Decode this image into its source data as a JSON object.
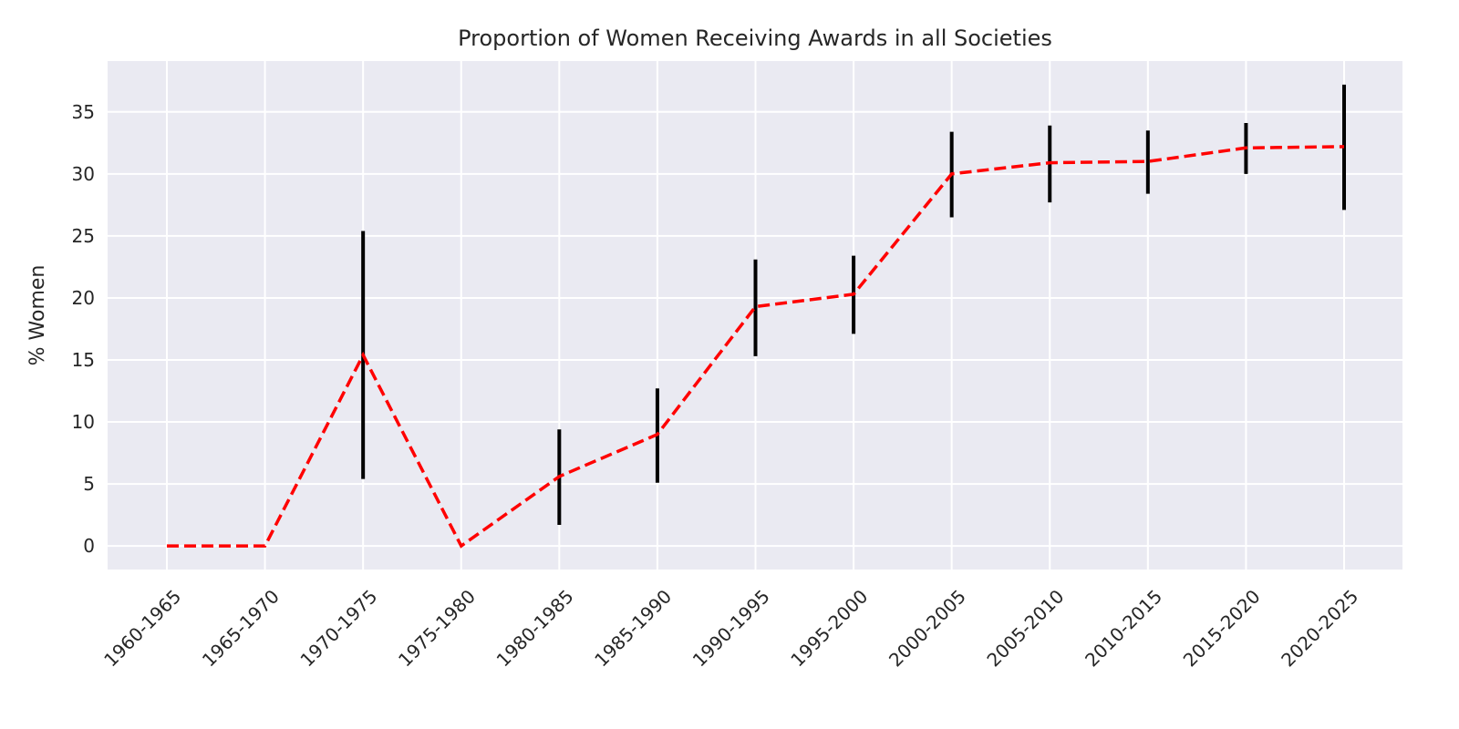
{
  "chart_data": {
    "type": "line",
    "title": "Proportion of Women Receiving Awards in all Societies",
    "xlabel": "",
    "ylabel": "% Women",
    "categories": [
      "1960-1965",
      "1965-1970",
      "1970-1975",
      "1975-1980",
      "1980-1985",
      "1985-1990",
      "1990-1995",
      "1995-2000",
      "2000-2005",
      "2005-2010",
      "2010-2015",
      "2015-2020",
      "2020-2025"
    ],
    "series": [
      {
        "values": [
          0,
          0,
          15.4,
          0,
          5.6,
          9.0,
          19.3,
          20.3,
          30.0,
          30.9,
          31.0,
          32.1,
          32.2
        ],
        "error_low": [
          null,
          null,
          5.4,
          null,
          1.7,
          5.1,
          15.3,
          17.1,
          26.5,
          27.7,
          28.4,
          30.0,
          27.1
        ],
        "error_high": [
          null,
          null,
          25.4,
          null,
          9.4,
          12.7,
          23.1,
          23.4,
          33.4,
          33.9,
          33.5,
          34.1,
          37.2
        ],
        "line_color": "#ff0000",
        "line_style": "dashed",
        "error_color": "#000000"
      }
    ],
    "yticks": [
      0,
      5,
      10,
      15,
      20,
      25,
      30,
      35
    ],
    "ylim": [
      -1.9,
      39.1
    ],
    "grid": true,
    "background": "#eaeaf2",
    "grid_color": "#ffffff",
    "legend": "none"
  }
}
